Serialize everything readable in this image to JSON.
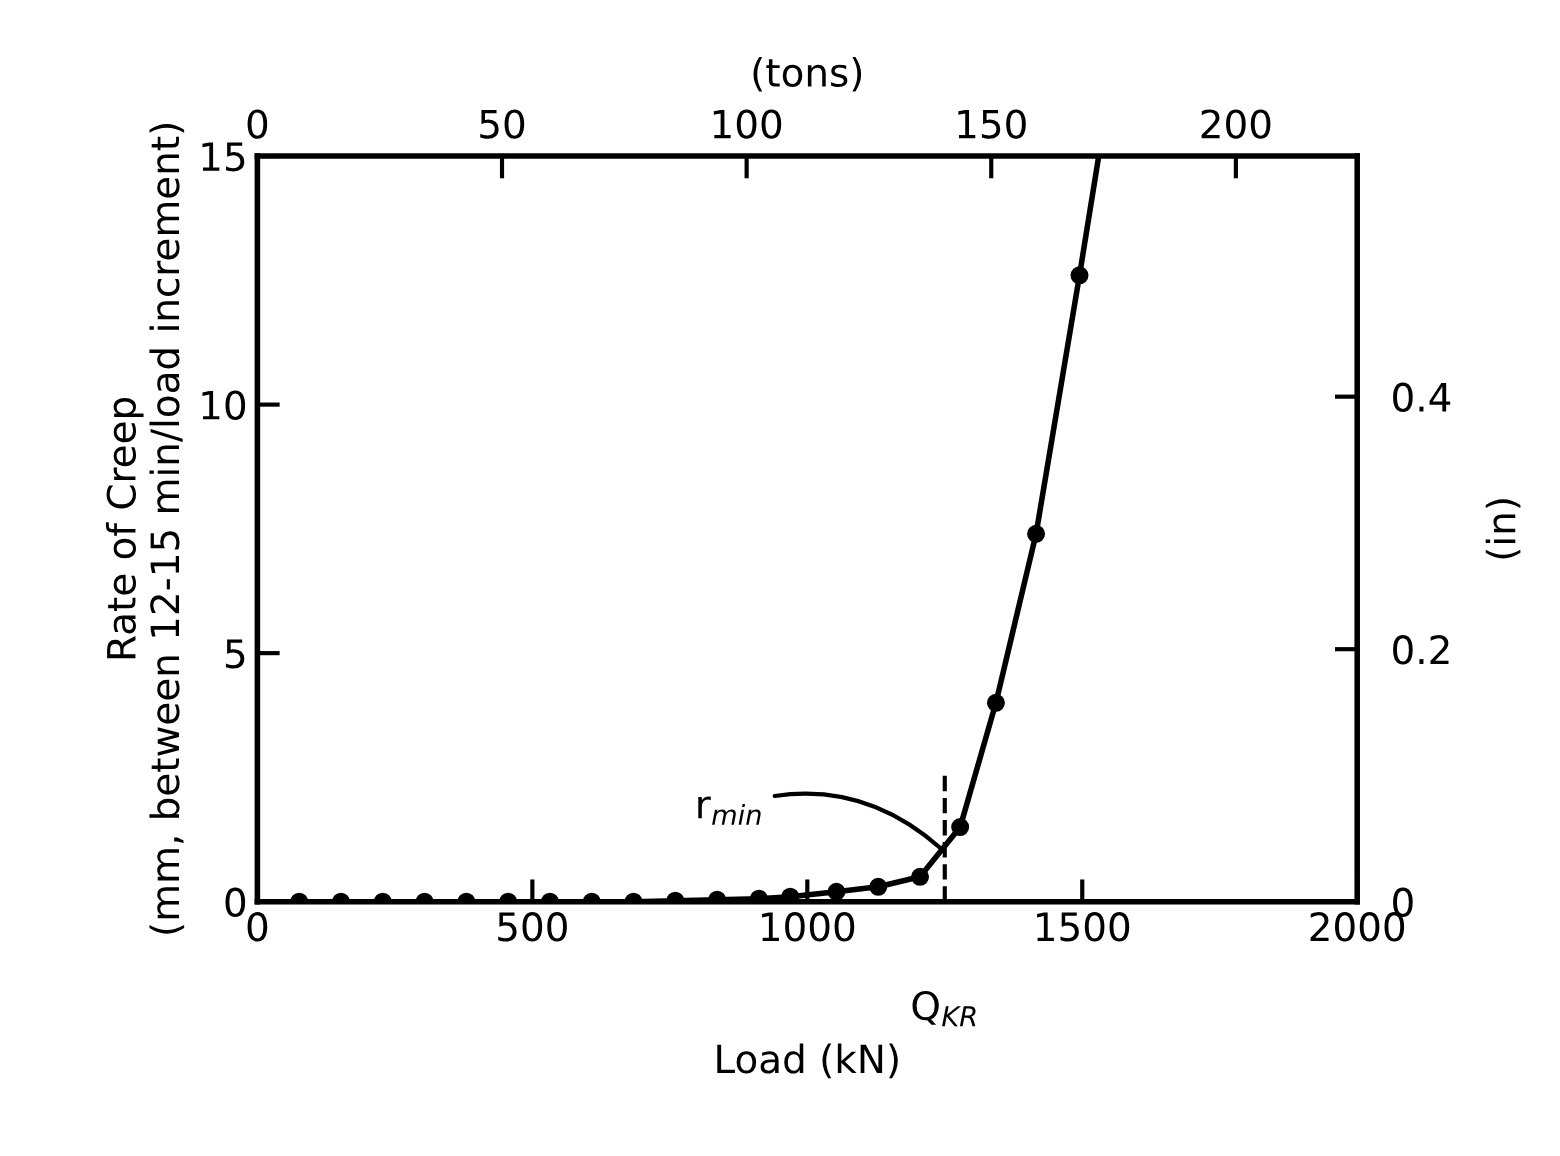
{
  "chart_data": {
    "type": "line",
    "xlabel": "Load (kN)",
    "ylabel": "Rate of Creep\n(mm, between 12-15 min/load increment)",
    "y2label": "(in)",
    "x2label": "(tons)",
    "xlim": [
      0,
      2000
    ],
    "xticks": [
      0,
      500,
      1000,
      1500,
      2000
    ],
    "ylim": [
      0,
      15
    ],
    "yticks": [
      0,
      5,
      10,
      15
    ],
    "x2lim": [
      0,
      224.8
    ],
    "x2ticks": [
      0,
      50,
      100,
      150,
      200
    ],
    "y2lim": [
      0,
      0.5906
    ],
    "y2ticks": [
      0,
      0.2,
      0.4
    ],
    "grid": false,
    "series": [
      {
        "color": "#000000",
        "marker": "none",
        "x": [
          76,
          152,
          228,
          304,
          380,
          456,
          532,
          608,
          684,
          760,
          836,
          912,
          969,
          1053,
          1129,
          1205,
          1278,
          1343,
          1416,
          1495,
          1530
        ],
        "values": [
          0,
          0,
          0,
          0,
          0,
          0,
          0,
          0,
          0,
          0.02,
          0.04,
          0.06,
          0.1,
          0.2,
          0.3,
          0.5,
          1.5,
          4.0,
          7.4,
          12.6,
          15
        ]
      },
      {
        "type": "scatter",
        "color": "#000000",
        "marker": "circle",
        "x": [
          76,
          152,
          228,
          304,
          380,
          456,
          532,
          608,
          684,
          760,
          836,
          912,
          969,
          1053,
          1129,
          1205,
          1278,
          1343,
          1416,
          1495
        ],
        "values": [
          0,
          0,
          0,
          0,
          0,
          0,
          0,
          0,
          0,
          0.02,
          0.04,
          0.06,
          0.1,
          0.2,
          0.3,
          0.5,
          1.5,
          4.0,
          7.4,
          12.6
        ]
      }
    ],
    "ref_lines": [
      {
        "axis": "x",
        "value": 1250,
        "label": "Q$_{KR}$",
        "line_style": "dashed",
        "color": "#000000"
      }
    ],
    "annotations": [
      {
        "text": "r$_{min}$",
        "x": 1250,
        "y": 1.0
      }
    ]
  }
}
